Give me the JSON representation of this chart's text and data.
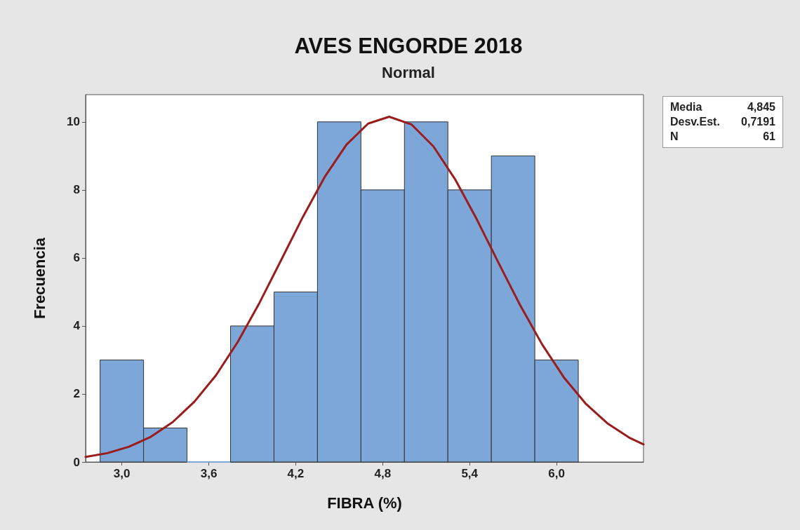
{
  "chart_data": {
    "type": "histogram",
    "title": "AVES ENGORDE 2018",
    "subtitle": "Normal",
    "xlabel": "FIBRA (%)",
    "ylabel": "Frecuencia",
    "bins": [
      2.85,
      3.15,
      3.45,
      3.75,
      4.05,
      4.35,
      4.65,
      4.95,
      5.25,
      5.55,
      5.85,
      6.15
    ],
    "series": [
      {
        "color": "#7da7d9",
        "values": [
          3,
          1,
          0,
          4,
          5,
          10,
          8,
          10,
          8,
          9,
          3
        ]
      },
      {
        "type": "line",
        "color": "#9b1c1c",
        "x": [
          2.75,
          2.9,
          3.05,
          3.2,
          3.35,
          3.5,
          3.65,
          3.8,
          3.95,
          4.1,
          4.25,
          4.4,
          4.55,
          4.7,
          4.845,
          5.0,
          5.15,
          5.3,
          5.45,
          5.6,
          5.75,
          5.9,
          6.05,
          6.2,
          6.35,
          6.5,
          6.6
        ],
        "values": [
          0.15,
          0.26,
          0.45,
          0.74,
          1.17,
          1.77,
          2.55,
          3.53,
          4.68,
          5.94,
          7.21,
          8.38,
          9.33,
          9.95,
          10.15,
          9.92,
          9.28,
          8.31,
          7.13,
          5.85,
          4.6,
          3.46,
          2.49,
          1.72,
          1.14,
          0.72,
          0.52
        ]
      }
    ],
    "xlim": [
      2.75,
      6.6
    ],
    "xticks": [
      {
        "value": 3.0,
        "label": "3,0"
      },
      {
        "value": 3.6,
        "label": "3,6"
      },
      {
        "value": 4.2,
        "label": "4,2"
      },
      {
        "value": 4.8,
        "label": "4,8"
      },
      {
        "value": 5.4,
        "label": "5,4"
      },
      {
        "value": 6.0,
        "label": "6,0"
      }
    ],
    "ylim": [
      0,
      10.8
    ],
    "yticks": [
      0,
      2,
      4,
      6,
      8,
      10
    ],
    "grid": false,
    "annotations": [
      "Media",
      "4,845",
      "Desv.Est.",
      "0,7191",
      "N",
      "61"
    ]
  }
}
